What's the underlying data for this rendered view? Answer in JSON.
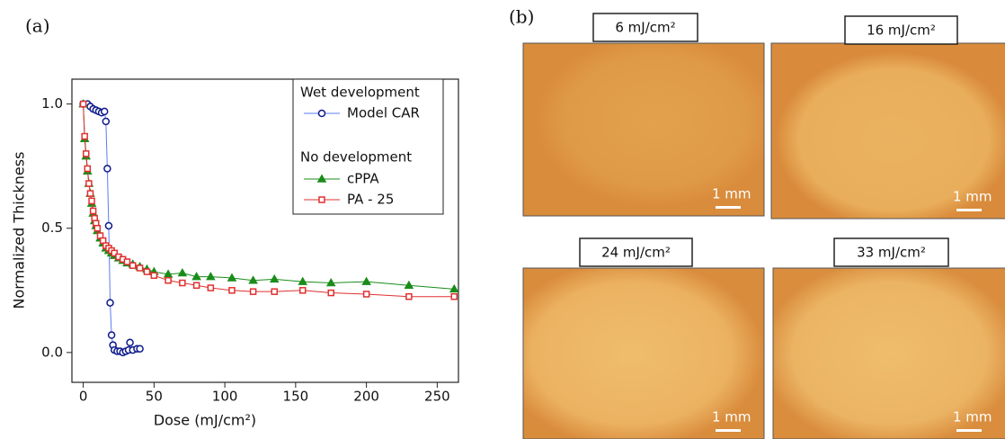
{
  "chart_data": {
    "type": "line",
    "panel_label": "(a)",
    "x_label": "Dose (mJ/cm²)",
    "y_label": "Normalized Thickness",
    "xlim": [
      -8,
      265
    ],
    "ylim": [
      -0.12,
      1.1
    ],
    "xticks": [
      0,
      50,
      100,
      150,
      200,
      250
    ],
    "yticks": [
      {
        "value": 0,
        "label": "0.0"
      },
      0.5,
      {
        "value": 1,
        "label": "1.0"
      }
    ],
    "legend_headings": [
      "Wet development",
      "No development"
    ],
    "series": [
      {
        "name": "Model CAR",
        "color": "#0d1a8c",
        "line_color": "#5b7cf0",
        "marker": "circle",
        "filled": false,
        "x": [
          0,
          3,
          5,
          7,
          9,
          11,
          13,
          15,
          16,
          17,
          18,
          19,
          20,
          21,
          22,
          24,
          26,
          28,
          30,
          32,
          33,
          35,
          38,
          40
        ],
        "values": [
          1.0,
          1.0,
          0.99,
          0.98,
          0.975,
          0.97,
          0.965,
          0.97,
          0.93,
          0.74,
          0.51,
          0.2,
          0.07,
          0.03,
          0.01,
          0.005,
          0.005,
          0.0,
          0.005,
          0.01,
          0.04,
          0.01,
          0.015,
          0.015
        ]
      },
      {
        "name": "cPPA",
        "color": "#1a8c1a",
        "line_color": "#1a8c1a",
        "marker": "triangle",
        "filled": true,
        "x": [
          0,
          1,
          2,
          3,
          4,
          5,
          6,
          7,
          8,
          9,
          10,
          12,
          14,
          16,
          18,
          20,
          22,
          25,
          28,
          31,
          35,
          40,
          45,
          50,
          60,
          70,
          80,
          90,
          105,
          120,
          135,
          155,
          175,
          200,
          230,
          262
        ],
        "values": [
          1.0,
          0.86,
          0.79,
          0.73,
          0.68,
          0.64,
          0.6,
          0.56,
          0.53,
          0.51,
          0.49,
          0.46,
          0.44,
          0.42,
          0.41,
          0.4,
          0.39,
          0.38,
          0.37,
          0.36,
          0.355,
          0.345,
          0.335,
          0.325,
          0.315,
          0.32,
          0.305,
          0.305,
          0.3,
          0.29,
          0.295,
          0.285,
          0.28,
          0.285,
          0.27,
          0.255
        ]
      },
      {
        "name": "PA - 25",
        "color": "#e03030",
        "line_color": "#e03030",
        "marker": "square",
        "filled": false,
        "x": [
          0,
          1,
          2,
          3,
          4,
          5,
          6,
          7,
          8,
          9,
          10,
          12,
          14,
          16,
          18,
          20,
          22,
          25,
          28,
          31,
          35,
          40,
          45,
          50,
          60,
          70,
          80,
          90,
          105,
          120,
          135,
          155,
          175,
          200,
          230,
          262
        ],
        "values": [
          1.0,
          0.87,
          0.8,
          0.74,
          0.68,
          0.64,
          0.61,
          0.57,
          0.54,
          0.52,
          0.5,
          0.47,
          0.45,
          0.43,
          0.42,
          0.41,
          0.4,
          0.385,
          0.375,
          0.365,
          0.35,
          0.34,
          0.325,
          0.31,
          0.29,
          0.28,
          0.27,
          0.26,
          0.25,
          0.245,
          0.245,
          0.25,
          0.24,
          0.235,
          0.225,
          0.225
        ]
      }
    ]
  },
  "panel_b": {
    "label": "(b)",
    "images": [
      {
        "label": "6 mJ/cm²",
        "scale": "1 mm"
      },
      {
        "label": "16 mJ/cm²",
        "scale": "1 mm"
      },
      {
        "label": "24 mJ/cm²",
        "scale": "1 mm"
      },
      {
        "label": "33 mJ/cm²",
        "scale": "1 mm"
      }
    ]
  }
}
